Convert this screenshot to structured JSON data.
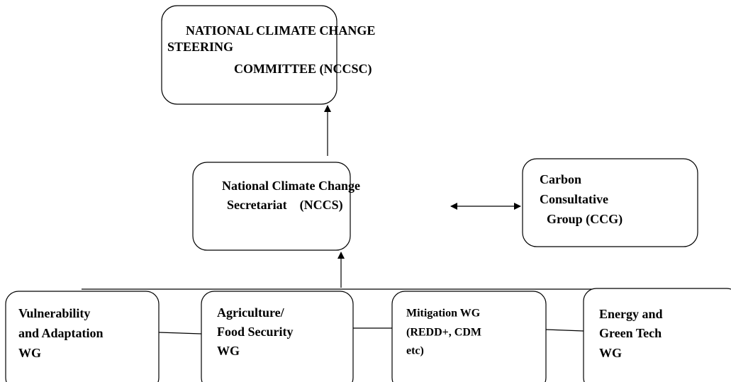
{
  "nodes": [
    {
      "lines": [
        "NATIONAL CLIMATE CHANGE",
        "STEERING",
        "COMMITTEE (NCCSC)"
      ]
    },
    {
      "lines": [
        "National Climate Change",
        "Secretariat    (NCCS)"
      ]
    },
    {
      "lines": [
        "Carbon",
        "Consultative",
        "Group (CCG)"
      ]
    },
    {
      "lines": [
        "Vulnerability",
        "and Adaptation",
        "WG"
      ]
    },
    {
      "lines": [
        "Agriculture/",
        "Food Security",
        "WG"
      ]
    },
    {
      "lines": [
        "Mitigation WG",
        "(REDD+, CDM",
        "etc)"
      ]
    },
    {
      "lines": [
        "Energy and",
        "Green Tech",
        "WG"
      ]
    }
  ]
}
